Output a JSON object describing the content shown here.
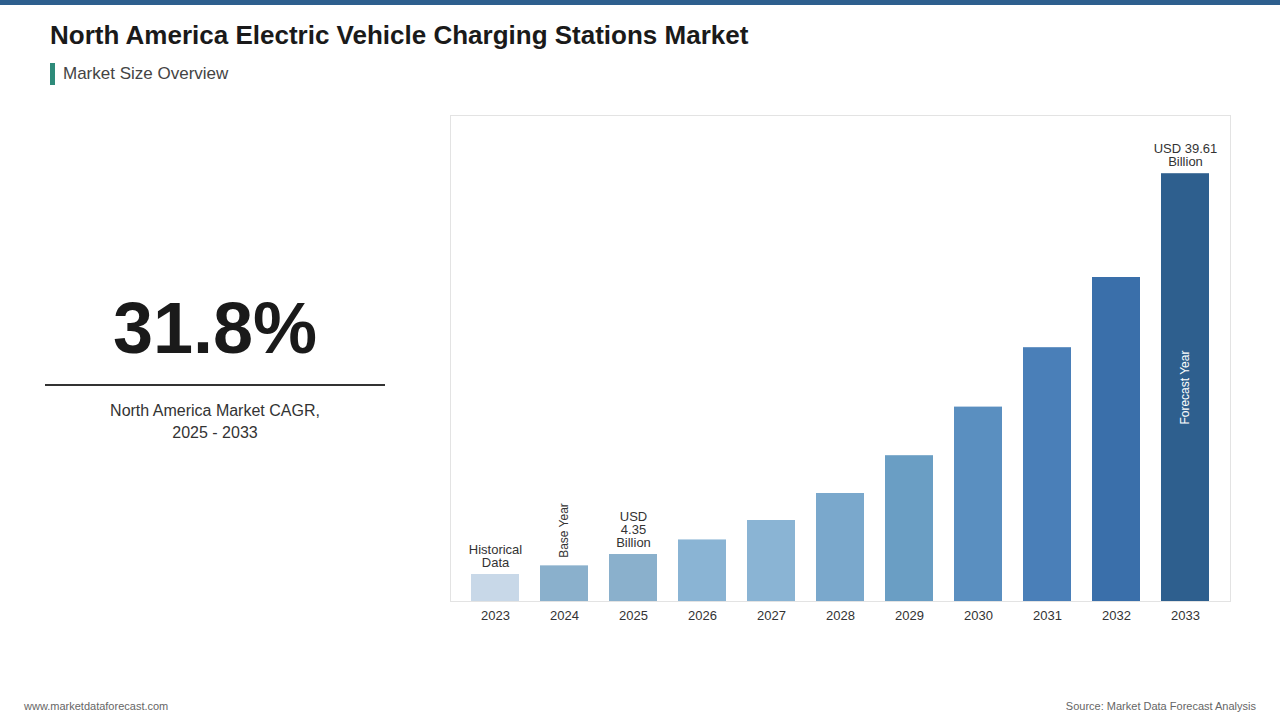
{
  "chart_data": {
    "type": "bar",
    "title": "North America Electric Vehicle Charging Stations Market",
    "subtitle": "Market Size Overview",
    "categories": [
      "2023",
      "2024",
      "2025",
      "2026",
      "2027",
      "2028",
      "2029",
      "2030",
      "2031",
      "2032",
      "2033"
    ],
    "values": [
      2.5,
      3.3,
      4.35,
      5.7,
      7.5,
      10.0,
      13.5,
      18.0,
      23.5,
      30.0,
      39.61
    ],
    "colors": [
      "#c8d8e8",
      "#8ab0cc",
      "#8ab0cc",
      "#8ab4d4",
      "#8ab4d4",
      "#7aa8cc",
      "#6a9ec4",
      "#5a8fc0",
      "#4a7fb8",
      "#3a6faa",
      "#2e5f8e"
    ],
    "ylim": [
      0,
      45
    ],
    "grid": false,
    "tick_labels": "x",
    "annotations": [
      {
        "text": "Base Year",
        "category": "2024"
      },
      {
        "text": "Forecast Year",
        "category": "2033"
      },
      {
        "text": "USD\n4.35\nBillion",
        "category": "2025"
      },
      {
        "text": "USD 39.61\nBillion",
        "category": "2033"
      },
      {
        "text": "Historical\nData",
        "category": "2023"
      }
    ],
    "cagr_text": "31.8%",
    "cagr_label": "North America Market CAGR,\n2025 - 2033",
    "footer_left": "www.marketdataforecast.com",
    "footer_right": "Source: Market Data Forecast Analysis"
  }
}
